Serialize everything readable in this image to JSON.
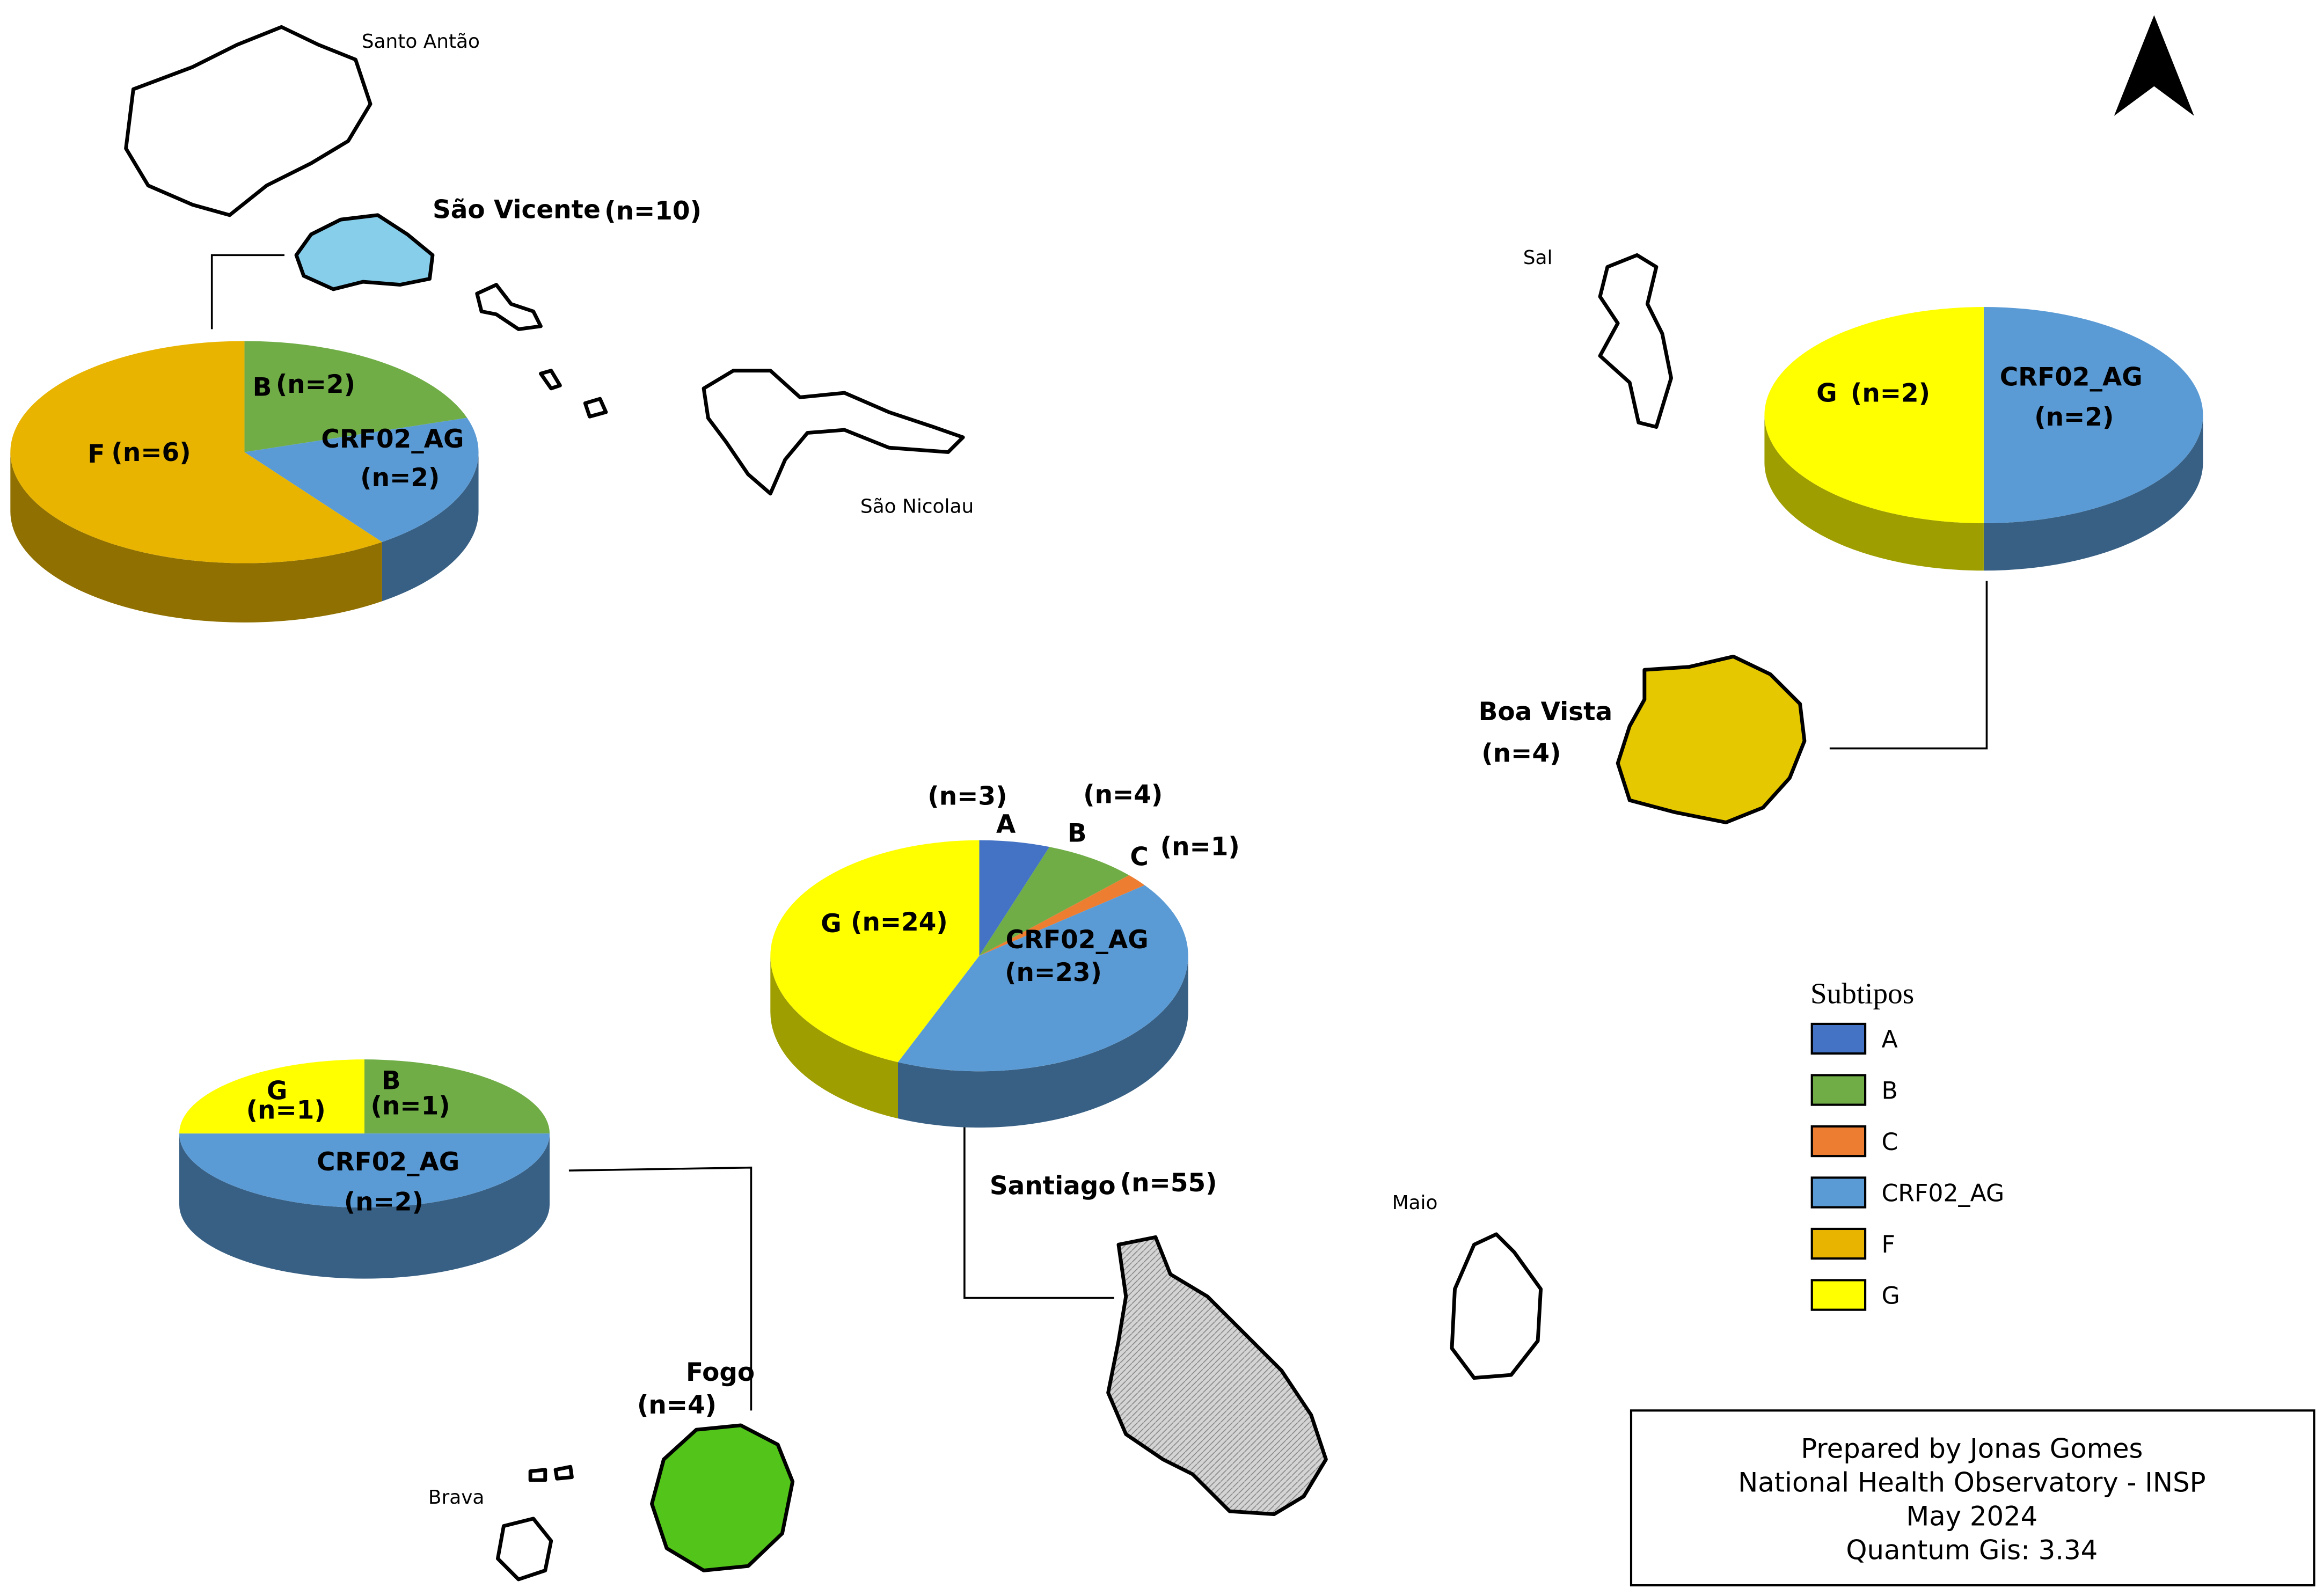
{
  "islands": [
    {
      "name": "Santo Antão"
    },
    {
      "name": "São Vicente",
      "count": "(n=10)",
      "slices": [
        {
          "subtype": "B",
          "value": 2,
          "value_label": "(n=2)"
        },
        {
          "subtype": "CRF02_AG",
          "value": 2,
          "value_label": "(n=2)"
        },
        {
          "subtype": "F",
          "value": 6,
          "value_label": "(n=6)"
        }
      ]
    },
    {
      "name": "São Nicolau"
    },
    {
      "name": "Sal"
    },
    {
      "name": "Boa Vista",
      "count": "(n=4)",
      "slices": [
        {
          "subtype": "CRF02_AG",
          "value": 2,
          "value_label": "(n=2)"
        },
        {
          "subtype": "G",
          "value": 2,
          "value_label": "(n=2)"
        }
      ]
    },
    {
      "name": "Santiago",
      "count": "(n=55)",
      "slices": [
        {
          "subtype": "A",
          "value": 3,
          "value_label": "(n=3)"
        },
        {
          "subtype": "B",
          "value": 4,
          "value_label": "(n=4)"
        },
        {
          "subtype": "C",
          "value": 1,
          "value_label": "(n=1)"
        },
        {
          "subtype": "CRF02_AG",
          "value": 23,
          "value_label": "(n=23)"
        },
        {
          "subtype": "G",
          "value": 24,
          "value_label": "(n=24)"
        }
      ]
    },
    {
      "name": "Maio"
    },
    {
      "name": "Fogo",
      "count": "(n=4)",
      "slices": [
        {
          "subtype": "B",
          "value": 1,
          "value_label": "(n=1)"
        },
        {
          "subtype": "CRF02_AG",
          "value": 2,
          "value_label": "(n=2)"
        },
        {
          "subtype": "G",
          "value": 1,
          "value_label": "(n=1)"
        }
      ]
    },
    {
      "name": "Brava"
    }
  ],
  "legend": {
    "title": "Subtipos",
    "items": [
      {
        "name": "A",
        "color": "#4472c4"
      },
      {
        "name": "B",
        "color": "#70ad47"
      },
      {
        "name": "C",
        "color": "#ed7d31"
      },
      {
        "name": "CRF02_AG",
        "color": "#5b9bd5"
      },
      {
        "name": "F",
        "color": "#e8b400"
      },
      {
        "name": "G",
        "color": "#ffff00"
      }
    ]
  },
  "credits": [
    "Prepared by Jonas Gomes",
    "National Health Observatory - INSP",
    "May 2024",
    "Quantum Gis: 3.34"
  ]
}
